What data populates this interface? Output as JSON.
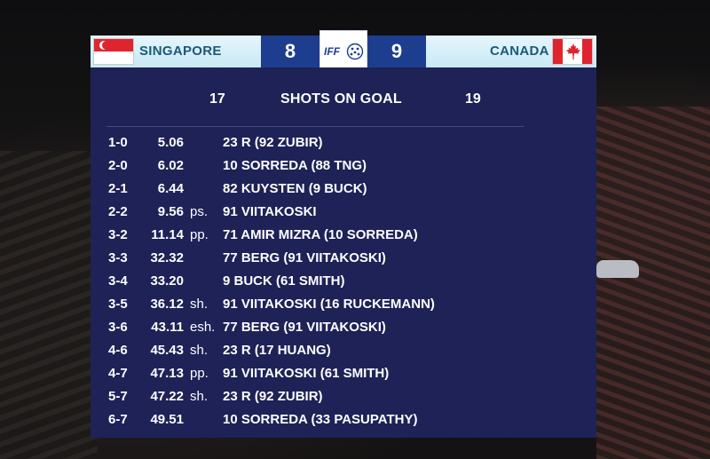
{
  "header": {
    "home": {
      "name": "SINGAPORE",
      "score": "8",
      "flag_icon": "singapore-flag"
    },
    "away": {
      "name": "CANADA",
      "score": "9",
      "flag_icon": "canada-flag"
    },
    "logo_text": "IFF"
  },
  "shots_on_goal": {
    "label": "SHOTS ON GOAL",
    "home": "17",
    "away": "19"
  },
  "goals": [
    {
      "score": "1-0",
      "time": "5.06",
      "type": "",
      "scorer": "23 R (92 ZUBIR)"
    },
    {
      "score": "2-0",
      "time": "6.02",
      "type": "",
      "scorer": "10 SORREDA (88 TNG)"
    },
    {
      "score": "2-1",
      "time": "6.44",
      "type": "",
      "scorer": "82 KUYSTEN (9 BUCK)"
    },
    {
      "score": "2-2",
      "time": "9.56",
      "type": "ps.",
      "scorer": "91 VIITAKOSKI"
    },
    {
      "score": "3-2",
      "time": "11.14",
      "type": "pp.",
      "scorer": "71 AMIR MIZRA (10 SORREDA)"
    },
    {
      "score": "3-3",
      "time": "32.32",
      "type": "",
      "scorer": "77 BERG (91 VIITAKOSKI)"
    },
    {
      "score": "3-4",
      "time": "33.20",
      "type": "",
      "scorer": "9 BUCK (61 SMITH)"
    },
    {
      "score": "3-5",
      "time": "36.12",
      "type": "sh.",
      "scorer": "91 VIITAKOSKI (16 RUCKEMANN)"
    },
    {
      "score": "3-6",
      "time": "43.11",
      "type": "esh.",
      "scorer": "77 BERG (91 VIITAKOSKI)"
    },
    {
      "score": "4-6",
      "time": "45.43",
      "type": "sh.",
      "scorer": "23 R (17 HUANG)"
    },
    {
      "score": "4-7",
      "time": "47.13",
      "type": "pp.",
      "scorer": "91 VIITAKOSKI (61 SMITH)"
    },
    {
      "score": "5-7",
      "time": "47.22",
      "type": "sh.",
      "scorer": "23 R (92 ZUBIR)"
    },
    {
      "score": "6-7",
      "time": "49.51",
      "type": "",
      "scorer": "10 SORREDA (33 PASUPATHY)"
    }
  ],
  "colors": {
    "panel": "#1e2257",
    "score_box": "#1d3d8f",
    "team_bar": "#d8f0f8",
    "team_text": "#1a5a78"
  }
}
